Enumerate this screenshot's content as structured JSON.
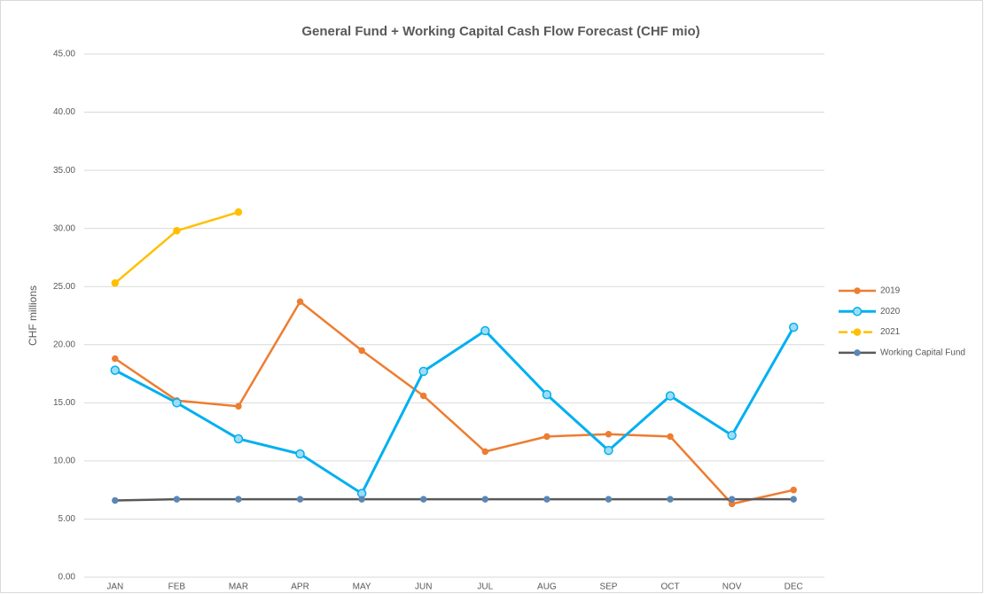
{
  "chart_data": {
    "type": "line",
    "title": "General Fund + Working Capital Cash Flow Forecast (CHF mio)",
    "y_label": "CHF millions",
    "categories": [
      "JAN",
      "FEB",
      "MAR",
      "APR",
      "MAY",
      "JUN",
      "JUL",
      "AUG",
      "SEP",
      "OCT",
      "NOV",
      "DEC"
    ],
    "series": [
      {
        "name": "2019",
        "color": "#ed7d31",
        "values": [
          18.8,
          15.2,
          14.7,
          23.7,
          19.5,
          15.6,
          10.8,
          12.1,
          12.3,
          12.1,
          6.3,
          7.5
        ]
      },
      {
        "name": "2020",
        "color": "#00b0f0",
        "values": [
          17.8,
          15.0,
          11.9,
          10.6,
          7.2,
          17.7,
          21.2,
          15.7,
          10.9,
          15.6,
          12.2,
          21.5
        ]
      },
      {
        "name": "2021",
        "color": "#ffc000",
        "values": [
          25.3,
          29.8,
          31.4,
          null,
          null,
          null,
          null,
          null,
          null,
          null,
          null,
          null
        ]
      },
      {
        "name": "Working Capital Fund",
        "color": "#595959",
        "values": [
          6.6,
          6.7,
          6.7,
          6.7,
          6.7,
          6.7,
          6.7,
          6.7,
          6.7,
          6.7,
          6.7,
          6.7
        ]
      }
    ],
    "ylim": [
      0,
      45
    ],
    "yticks": [
      {
        "value": 0,
        "label": "0.00"
      },
      {
        "value": 5,
        "label": "5.00"
      },
      {
        "value": 10,
        "label": "10.00"
      },
      {
        "value": 15,
        "label": "15.00"
      },
      {
        "value": 20,
        "label": "20.00"
      },
      {
        "value": 25,
        "label": "25.00"
      },
      {
        "value": 30,
        "label": "30.00"
      },
      {
        "value": 35,
        "label": "35.00"
      },
      {
        "value": 40,
        "label": "40.00"
      },
      {
        "value": 45,
        "label": "45.00"
      }
    ],
    "grid": true,
    "legend": "right"
  }
}
